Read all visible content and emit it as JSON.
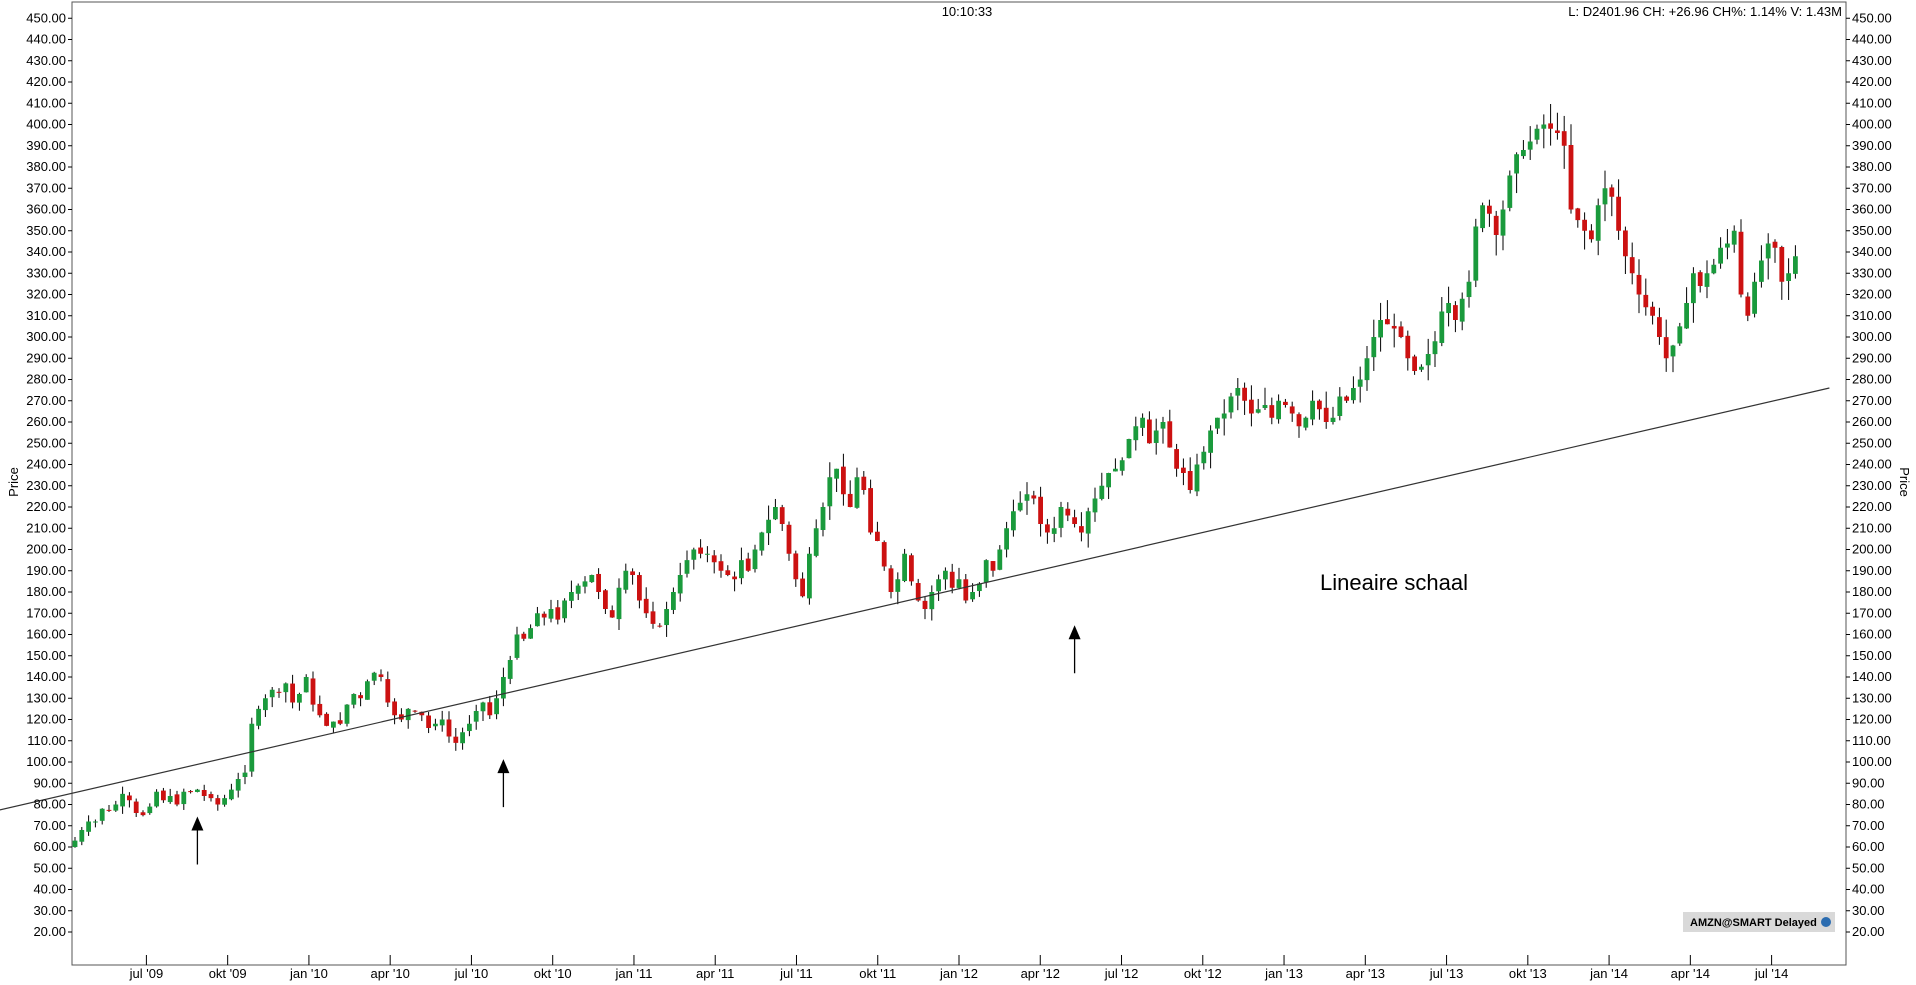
{
  "header": {
    "time": "10:10:33",
    "quote": "L: D2401.96 CH: +26.96 CH%: 1.14% V: 1.43M"
  },
  "badge": {
    "label": "AMZN@SMART Delayed"
  },
  "chart_data": {
    "type": "candlestick",
    "ylabel": "Price",
    "ylim": [
      10,
      455
    ],
    "y_ticks": [
      "20.00",
      "30.00",
      "40.00",
      "50.00",
      "60.00",
      "70.00",
      "80.00",
      "90.00",
      "100.00",
      "110.00",
      "120.00",
      "130.00",
      "140.00",
      "150.00",
      "160.00",
      "170.00",
      "180.00",
      "190.00",
      "200.00",
      "210.00",
      "220.00",
      "230.00",
      "240.00",
      "250.00",
      "260.00",
      "270.00",
      "280.00",
      "290.00",
      "300.00",
      "310.00",
      "320.00",
      "330.00",
      "340.00",
      "350.00",
      "360.00",
      "370.00",
      "380.00",
      "390.00",
      "400.00",
      "410.00",
      "420.00",
      "430.00",
      "440.00",
      "450.00"
    ],
    "x_labels": [
      "jul '09",
      "okt '09",
      "jan '10",
      "apr '10",
      "jul '10",
      "okt '10",
      "jan '11",
      "apr '11",
      "jul '11",
      "okt '11",
      "jan '12",
      "apr '12",
      "jul '12",
      "okt '12",
      "jan '13",
      "apr '13",
      "jul '13",
      "okt '13",
      "jan '14",
      "apr '14",
      "jul '14"
    ],
    "annotation": "Lineaire schaal",
    "colors": {
      "up": "#1a9a3c",
      "down": "#cc1111",
      "wick": "#000000"
    },
    "trendline": {
      "start": [
        -13,
        76
      ],
      "end": [
        258,
        276
      ]
    },
    "arrows": [
      {
        "week": 18,
        "price": 80
      },
      {
        "week": 63,
        "price": 107
      },
      {
        "week": 147,
        "price": 170
      }
    ],
    "closes": [
      63,
      68,
      72,
      72,
      78,
      77,
      80,
      85,
      82,
      76,
      75,
      79,
      86,
      82,
      84,
      80,
      86,
      86,
      87,
      84,
      83,
      80,
      83,
      87,
      92,
      95,
      118,
      125,
      130,
      134,
      133,
      137,
      128,
      132,
      140,
      127,
      122,
      117,
      119,
      118,
      127,
      132,
      130,
      138,
      142,
      140,
      128,
      122,
      120,
      125,
      124,
      122,
      116,
      118,
      120,
      112,
      109,
      114,
      118,
      124,
      128,
      122,
      130,
      140,
      148,
      160,
      158,
      163,
      170,
      168,
      172,
      167,
      176,
      180,
      183,
      185,
      188,
      180,
      172,
      168,
      182,
      190,
      188,
      176,
      170,
      165,
      164,
      172,
      180,
      188,
      195,
      200,
      198,
      198,
      194,
      190,
      188,
      186,
      195,
      190,
      200,
      208,
      214,
      220,
      212,
      198,
      186,
      178,
      198,
      210,
      220,
      234,
      238,
      226,
      220,
      234,
      228,
      208,
      204,
      192,
      180,
      186,
      198,
      185,
      176,
      172,
      180,
      186,
      190,
      182,
      186,
      176,
      180,
      184,
      195,
      190,
      200,
      210,
      218,
      222,
      226,
      224,
      212,
      208,
      210,
      220,
      216,
      212,
      208,
      218,
      224,
      230,
      236,
      238,
      242,
      252,
      258,
      262,
      250,
      256,
      260,
      248,
      238,
      236,
      228,
      240,
      246,
      256,
      262,
      264,
      272,
      276,
      270,
      264,
      266,
      268,
      262,
      270,
      268,
      264,
      258,
      262,
      270,
      266,
      260,
      262,
      272,
      270,
      276,
      280,
      290,
      300,
      308,
      306,
      304,
      300,
      290,
      284,
      286,
      292,
      298,
      312,
      316,
      308,
      318,
      326,
      352,
      362,
      358,
      348,
      360,
      376,
      386,
      388,
      392,
      398,
      400,
      398,
      396,
      390,
      360,
      355,
      350,
      346,
      362,
      370,
      366,
      350,
      338,
      330,
      320,
      314,
      310,
      300,
      290,
      296,
      305,
      316,
      330,
      324,
      330,
      334,
      342,
      344,
      350,
      320,
      310,
      326,
      336,
      344,
      342,
      326,
      330,
      338
    ]
  }
}
